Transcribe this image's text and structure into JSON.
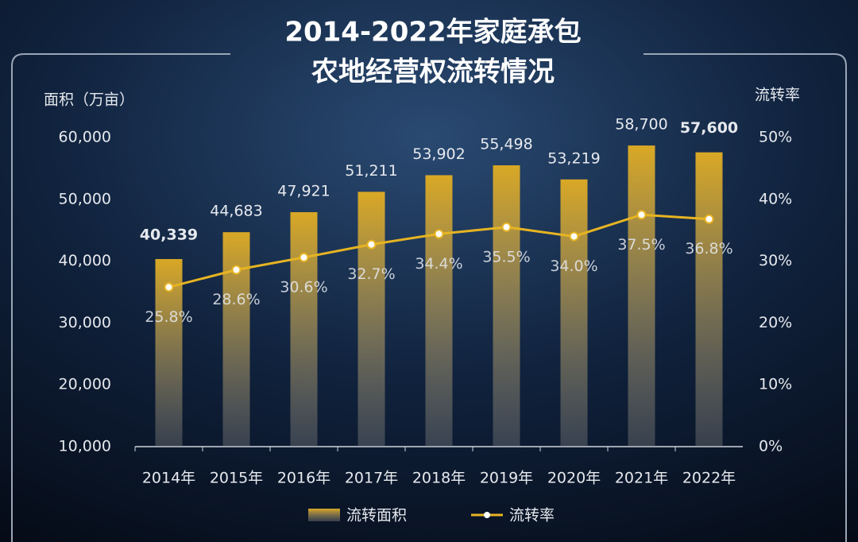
{
  "chart_data": {
    "type": "bar-line",
    "title": [
      "2014-2022年家庭承包",
      "农地经营权流转情况"
    ],
    "y_label": "面积（万亩）",
    "y2_label": "流转率",
    "categories": [
      "2014年",
      "2015年",
      "2016年",
      "2017年",
      "2018年",
      "2019年",
      "2020年",
      "2021年",
      "2022年"
    ],
    "series": [
      {
        "name": "流转面积",
        "type": "bar",
        "color": "#d9a825",
        "values": [
          40339,
          44683,
          47921,
          51211,
          53902,
          55498,
          53219,
          58700,
          57600
        ],
        "value_labels": [
          "40,339",
          "44,683",
          "47,921",
          "51,211",
          "53,902",
          "55,498",
          "53,219",
          "58,700",
          "57,600"
        ]
      },
      {
        "name": "流转率",
        "type": "line",
        "axis": "y2",
        "color": "#e6b422",
        "values": [
          25.8,
          28.6,
          30.6,
          32.7,
          34.4,
          35.5,
          34,
          37.5,
          36.8
        ],
        "value_labels": [
          "25.8%",
          "28.6%",
          "30.6%",
          "32.7%",
          "34.4%",
          "35.5%",
          "34.0%",
          "37.5%",
          "36.8%"
        ]
      }
    ],
    "ylim": [
      10000,
      60000
    ],
    "yticks": [
      {
        "value": 10000,
        "label": "10,000"
      },
      {
        "value": 20000,
        "label": "20,000"
      },
      {
        "value": 30000,
        "label": "30,000"
      },
      {
        "value": 40000,
        "label": "40,000"
      },
      {
        "value": 50000,
        "label": "50,000"
      },
      {
        "value": 60000,
        "label": "60,000"
      }
    ],
    "y2lim": [
      0,
      50
    ],
    "y2ticks": [
      {
        "value": 0,
        "label": "0%"
      },
      {
        "value": 10,
        "label": "10%"
      },
      {
        "value": 20,
        "label": "20%"
      },
      {
        "value": 30,
        "label": "30%"
      },
      {
        "value": 40,
        "label": "40%"
      },
      {
        "value": 50,
        "label": "50%"
      }
    ],
    "legend": "bottom"
  }
}
